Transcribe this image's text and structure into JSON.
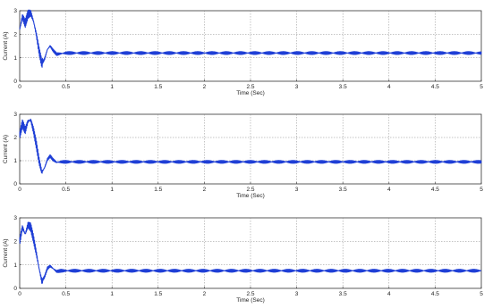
{
  "chart_data": [
    {
      "type": "line",
      "xlabel": "Time (Sec)",
      "ylabel": "Current (A)",
      "xlim": [
        0,
        5
      ],
      "ylim": [
        0,
        3
      ],
      "xticks": [
        "0",
        "0.5",
        "1",
        "1.5",
        "2",
        "2.5",
        "3",
        "3.5",
        "4",
        "4.5",
        "5"
      ],
      "yticks": [
        "0",
        "1",
        "2",
        "3"
      ],
      "grid": true,
      "line_color": "#1f3fd6",
      "series": [
        {
          "x": [
            0,
            0.03,
            0.06,
            0.09,
            0.12,
            0.15,
            0.18,
            0.21,
            0.24,
            0.27,
            0.3,
            0.33,
            0.36,
            0.4,
            0.45,
            0.5,
            0.6,
            0.8,
            1.0,
            1.5,
            2.0,
            2.5,
            3.0,
            3.5,
            4.0,
            4.5,
            5.0
          ],
          "y": [
            2.2,
            2.75,
            2.45,
            2.85,
            2.9,
            2.55,
            2.0,
            1.3,
            0.75,
            0.95,
            1.35,
            1.5,
            1.32,
            1.15,
            1.18,
            1.2,
            1.2,
            1.2,
            1.2,
            1.2,
            1.2,
            1.2,
            1.2,
            1.2,
            1.2,
            1.2,
            1.2
          ]
        }
      ]
    },
    {
      "type": "line",
      "xlabel": "Time (Sec)",
      "ylabel": "Current (A)",
      "xlim": [
        0,
        5
      ],
      "ylim": [
        0,
        3
      ],
      "xticks": [
        "0",
        "0.5",
        "1",
        "1.5",
        "2",
        "2.5",
        "3",
        "3.5",
        "4",
        "4.5",
        "5"
      ],
      "yticks": [
        "0",
        "1",
        "2",
        "3"
      ],
      "grid": true,
      "line_color": "#1f3fd6",
      "series": [
        {
          "x": [
            0,
            0.03,
            0.06,
            0.09,
            0.12,
            0.15,
            0.18,
            0.21,
            0.24,
            0.27,
            0.3,
            0.33,
            0.36,
            0.4,
            0.45,
            0.5,
            0.6,
            0.8,
            1.0,
            1.5,
            2.0,
            2.5,
            3.0,
            3.5,
            4.0,
            4.5,
            5.0
          ],
          "y": [
            2.1,
            2.6,
            2.3,
            2.7,
            2.75,
            2.3,
            1.7,
            1.0,
            0.5,
            0.7,
            1.05,
            1.2,
            1.05,
            0.93,
            0.95,
            0.95,
            0.95,
            0.95,
            0.95,
            0.95,
            0.95,
            0.95,
            0.95,
            0.95,
            0.95,
            0.95,
            0.95
          ]
        }
      ]
    },
    {
      "type": "line",
      "xlabel": "Time (Sec)",
      "ylabel": "Current (A)",
      "xlim": [
        0,
        5
      ],
      "ylim": [
        0,
        3
      ],
      "xticks": [
        "0",
        "0.5",
        "1",
        "1.5",
        "2",
        "2.5",
        "3",
        "3.5",
        "4",
        "4.5",
        "5"
      ],
      "yticks": [
        "0",
        "1",
        "2",
        "3"
      ],
      "grid": true,
      "line_color": "#1f3fd6",
      "series": [
        {
          "x": [
            0,
            0.03,
            0.06,
            0.09,
            0.12,
            0.15,
            0.18,
            0.21,
            0.24,
            0.27,
            0.3,
            0.33,
            0.36,
            0.4,
            0.45,
            0.5,
            0.6,
            0.8,
            1.0,
            1.5,
            2.0,
            2.5,
            3.0,
            3.5,
            4.0,
            4.5,
            5.0
          ],
          "y": [
            2.0,
            2.6,
            2.3,
            2.7,
            2.6,
            2.1,
            1.5,
            0.85,
            0.3,
            0.5,
            0.85,
            0.95,
            0.85,
            0.72,
            0.75,
            0.75,
            0.75,
            0.75,
            0.75,
            0.75,
            0.75,
            0.75,
            0.75,
            0.75,
            0.75,
            0.75,
            0.75
          ]
        }
      ]
    }
  ]
}
